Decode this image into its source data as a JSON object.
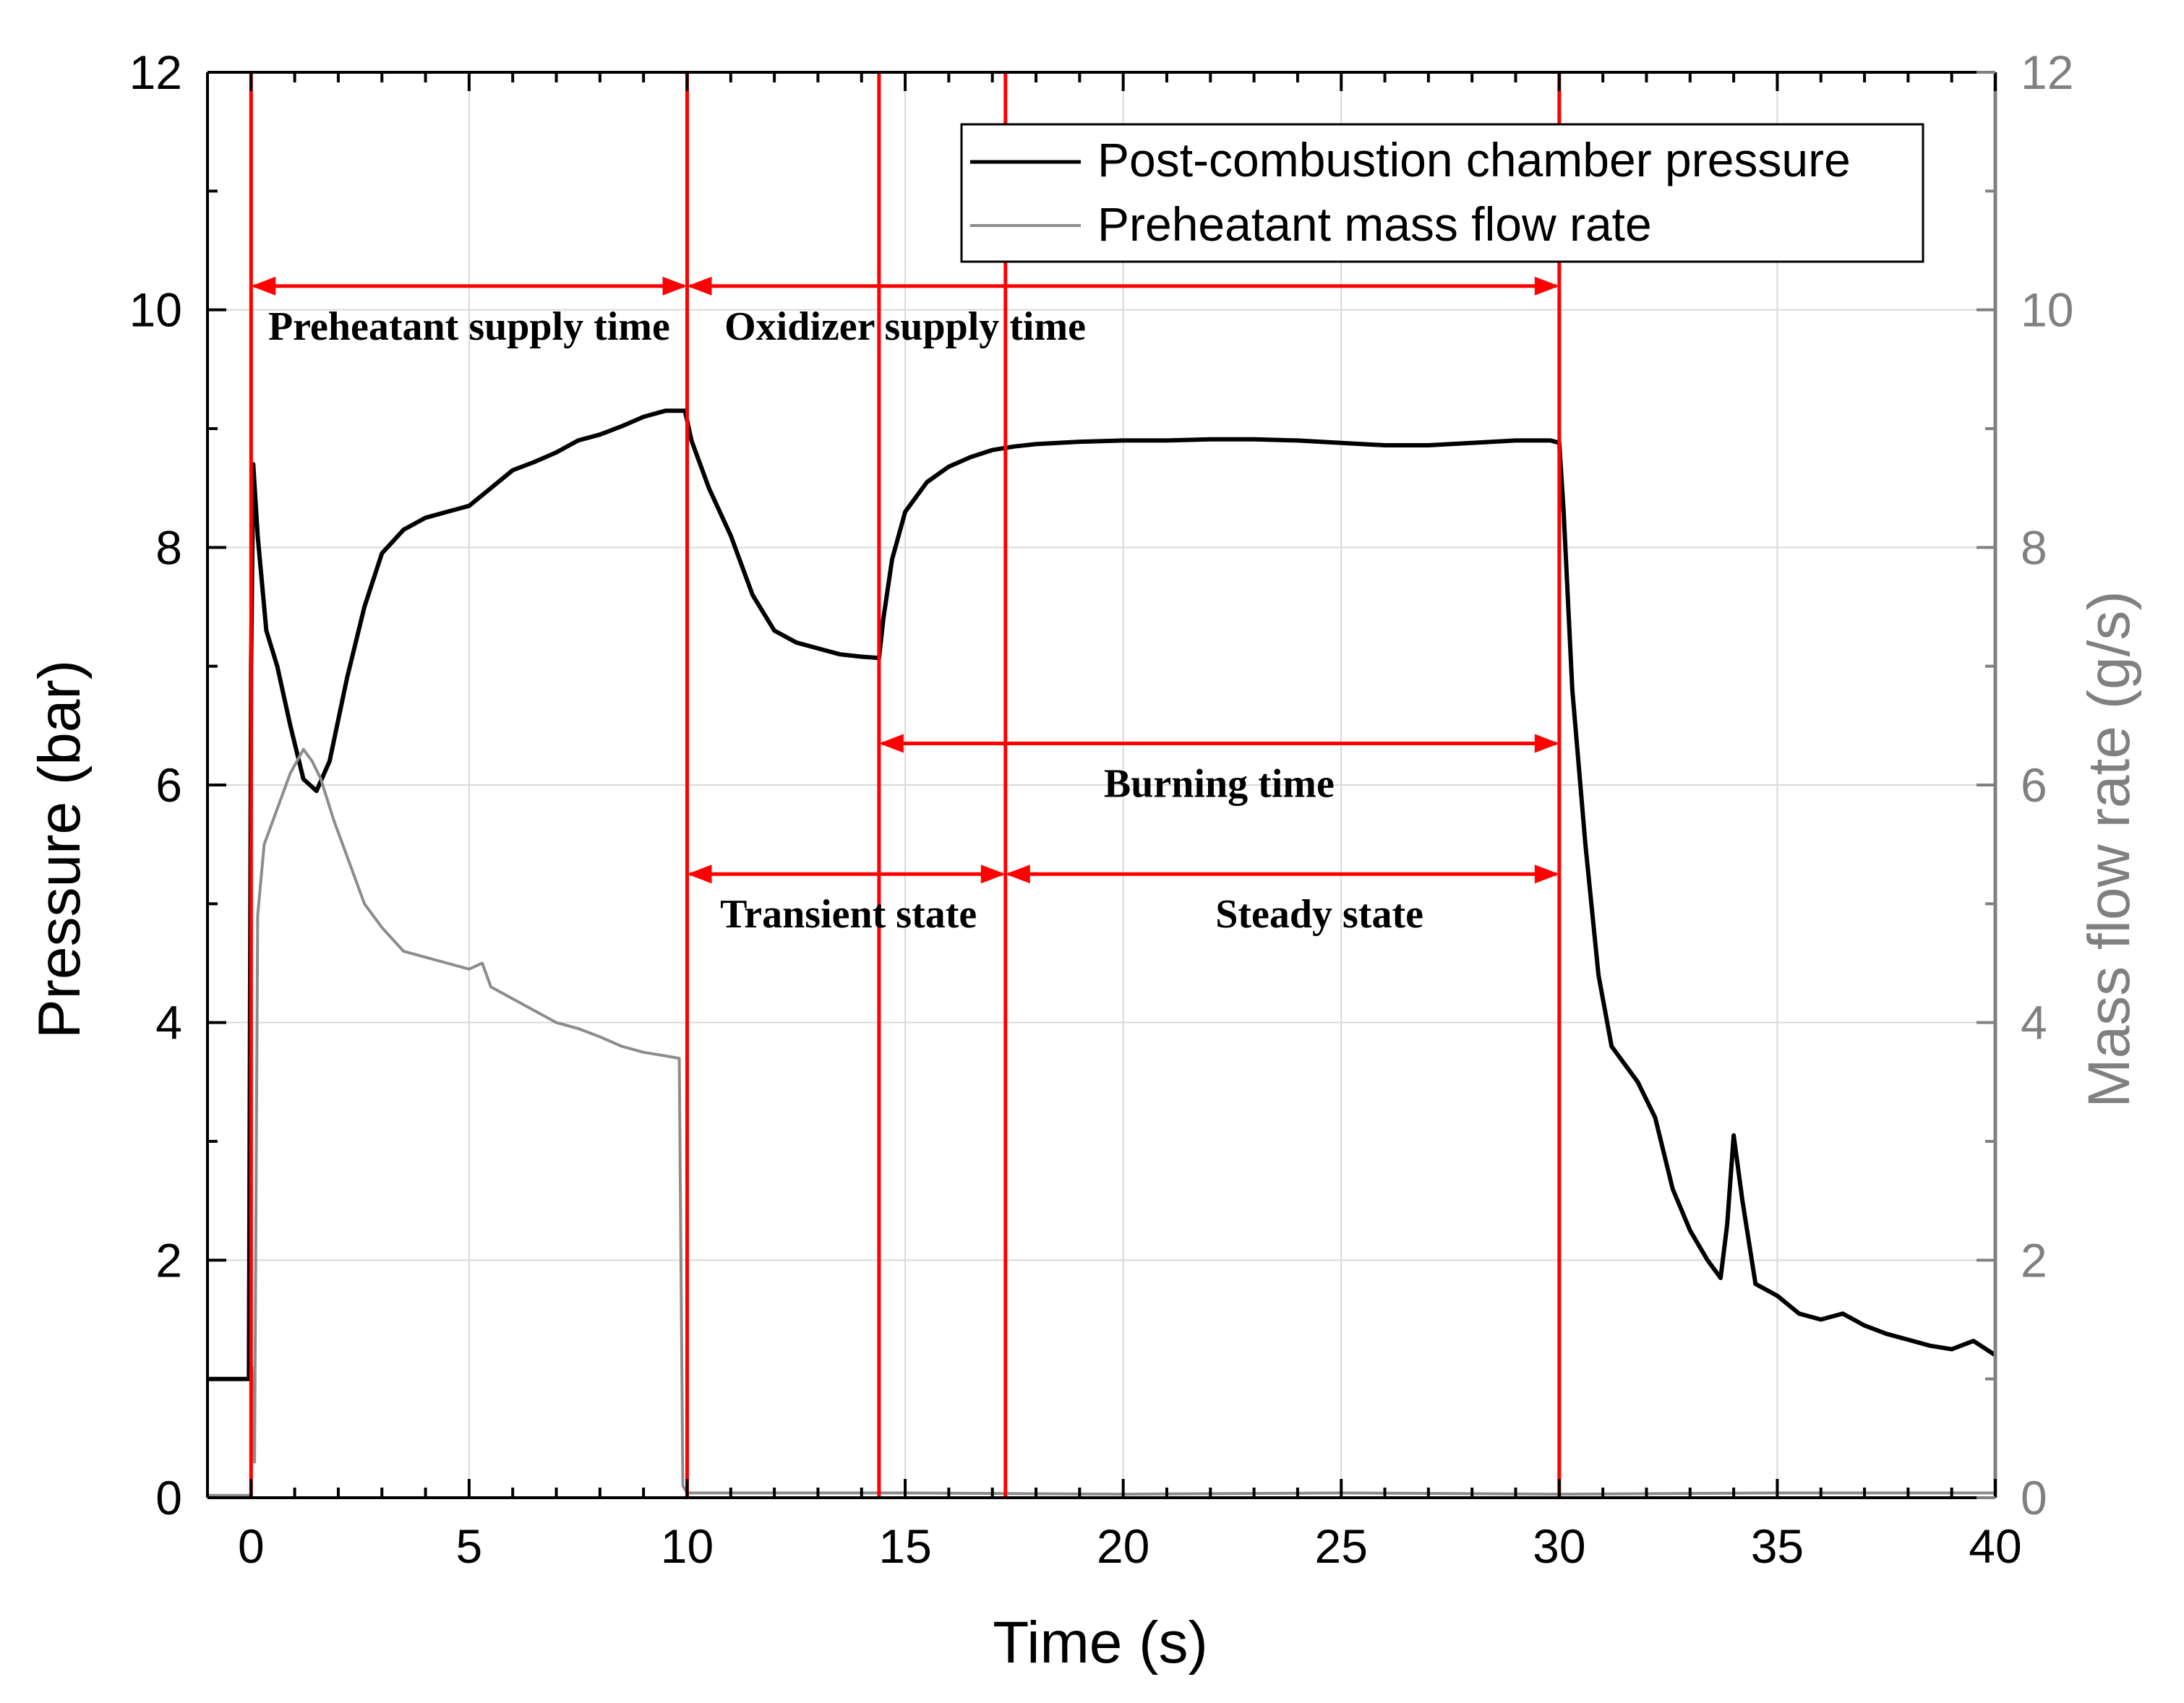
{
  "chart_data": {
    "type": "line",
    "xlabel": "Time (s)",
    "ylabel": "Pressure (bar)",
    "y2label": "Mass flow rate (g/s)",
    "xlim": [
      -1,
      40
    ],
    "ylim": [
      0,
      12
    ],
    "y2lim": [
      0,
      12
    ],
    "xticks": [
      0,
      5,
      10,
      15,
      20,
      25,
      30,
      35,
      40
    ],
    "yticks": [
      0,
      2,
      4,
      6,
      8,
      10,
      12
    ],
    "y2ticks": [
      0,
      2,
      4,
      6,
      8,
      10,
      12
    ],
    "grid": true,
    "legend_position": "top-right",
    "colors": {
      "pressure": "#000000",
      "flow": "#8c8c8c",
      "marker": "#ff0000",
      "y2axis": "#808080",
      "grid": "#d9d9d9"
    },
    "series": [
      {
        "name": "Post-combustion chamber pressure",
        "axis": "left",
        "x": [
          -1,
          -0.05,
          0.0,
          0.05,
          0.15,
          0.35,
          0.6,
          0.9,
          1.2,
          1.5,
          1.8,
          2.2,
          2.6,
          3.0,
          3.5,
          4.0,
          4.5,
          5.0,
          5.5,
          6.0,
          6.5,
          7.0,
          7.5,
          8.0,
          8.5,
          9.0,
          9.5,
          9.95,
          10.1,
          10.5,
          11.0,
          11.5,
          12.0,
          12.5,
          13.0,
          13.5,
          14.0,
          14.4,
          14.5,
          14.7,
          15.0,
          15.5,
          16.0,
          16.5,
          17.0,
          17.5,
          18.0,
          19.0,
          20.0,
          21.0,
          22.0,
          23.0,
          24.0,
          25.0,
          26.0,
          27.0,
          28.0,
          29.0,
          29.8,
          30.0,
          30.1,
          30.3,
          30.6,
          30.9,
          31.2,
          31.5,
          31.8,
          32.2,
          32.6,
          33.0,
          33.4,
          33.7,
          33.85,
          34.0,
          34.2,
          34.5,
          35.0,
          35.5,
          36.0,
          36.5,
          37.0,
          37.5,
          38.0,
          38.5,
          39.0,
          39.5,
          40.0
        ],
        "y": [
          1.0,
          1.0,
          7.0,
          8.7,
          8.1,
          7.3,
          7.0,
          6.5,
          6.05,
          5.95,
          6.2,
          6.9,
          7.5,
          7.95,
          8.15,
          8.25,
          8.3,
          8.35,
          8.5,
          8.65,
          8.72,
          8.8,
          8.9,
          8.95,
          9.02,
          9.1,
          9.15,
          9.15,
          8.9,
          8.5,
          8.1,
          7.6,
          7.3,
          7.2,
          7.15,
          7.1,
          7.08,
          7.07,
          7.4,
          7.9,
          8.3,
          8.55,
          8.68,
          8.76,
          8.82,
          8.85,
          8.87,
          8.89,
          8.9,
          8.9,
          8.91,
          8.91,
          8.9,
          8.88,
          8.86,
          8.86,
          8.88,
          8.9,
          8.9,
          8.88,
          8.3,
          6.8,
          5.5,
          4.4,
          3.8,
          3.65,
          3.5,
          3.2,
          2.6,
          2.25,
          2.0,
          1.85,
          2.3,
          3.05,
          2.5,
          1.8,
          1.7,
          1.55,
          1.5,
          1.55,
          1.45,
          1.38,
          1.33,
          1.28,
          1.25,
          1.32,
          1.2
        ]
      },
      {
        "name": "Preheatant mass flow rate",
        "axis": "right",
        "x": [
          -1,
          -0.05,
          0.0,
          0.02,
          0.08,
          0.15,
          0.3,
          0.6,
          0.9,
          1.2,
          1.4,
          1.6,
          1.9,
          2.2,
          2.6,
          3.0,
          3.5,
          4.0,
          4.5,
          5.0,
          5.3,
          5.5,
          6.0,
          6.5,
          7.0,
          7.5,
          8.0,
          8.5,
          9.0,
          9.5,
          9.8,
          9.82,
          9.9,
          10.0,
          10.5,
          15.0,
          20.0,
          25.0,
          30.0,
          35.0,
          40.0
        ],
        "y": [
          0.02,
          0.02,
          0.02,
          1.1,
          0.3,
          4.9,
          5.5,
          5.8,
          6.1,
          6.3,
          6.2,
          6.05,
          5.7,
          5.4,
          5.0,
          4.8,
          4.6,
          4.55,
          4.5,
          4.45,
          4.5,
          4.3,
          4.2,
          4.1,
          4.0,
          3.95,
          3.88,
          3.8,
          3.75,
          3.72,
          3.7,
          3.7,
          0.1,
          0.04,
          0.04,
          0.04,
          0.03,
          0.04,
          0.03,
          0.04,
          0.04
        ]
      }
    ],
    "vertical_lines_x": [
      0.0,
      10.0,
      14.4,
      17.3,
      30.0
    ],
    "annotations": [
      {
        "text": "Preheatant supply time",
        "from": 0.0,
        "to": 10.0,
        "y": 10.2,
        "label_x": 5.0,
        "label_y": 9.75
      },
      {
        "text": "Oxidizer supply time",
        "from": 10.0,
        "to": 30.0,
        "y": 10.2,
        "label_x": 15.0,
        "label_y": 9.75
      },
      {
        "text": "Burning time",
        "from": 14.4,
        "to": 30.0,
        "y": 6.35,
        "label_x": 22.2,
        "label_y": 5.9
      },
      {
        "text": "Transient state",
        "from": 10.0,
        "to": 17.3,
        "y": 5.25,
        "label_x": 13.7,
        "label_y": 4.8
      },
      {
        "text": "Steady state",
        "from": 17.3,
        "to": 30.0,
        "y": 5.25,
        "label_x": 24.5,
        "label_y": 4.8
      }
    ]
  }
}
